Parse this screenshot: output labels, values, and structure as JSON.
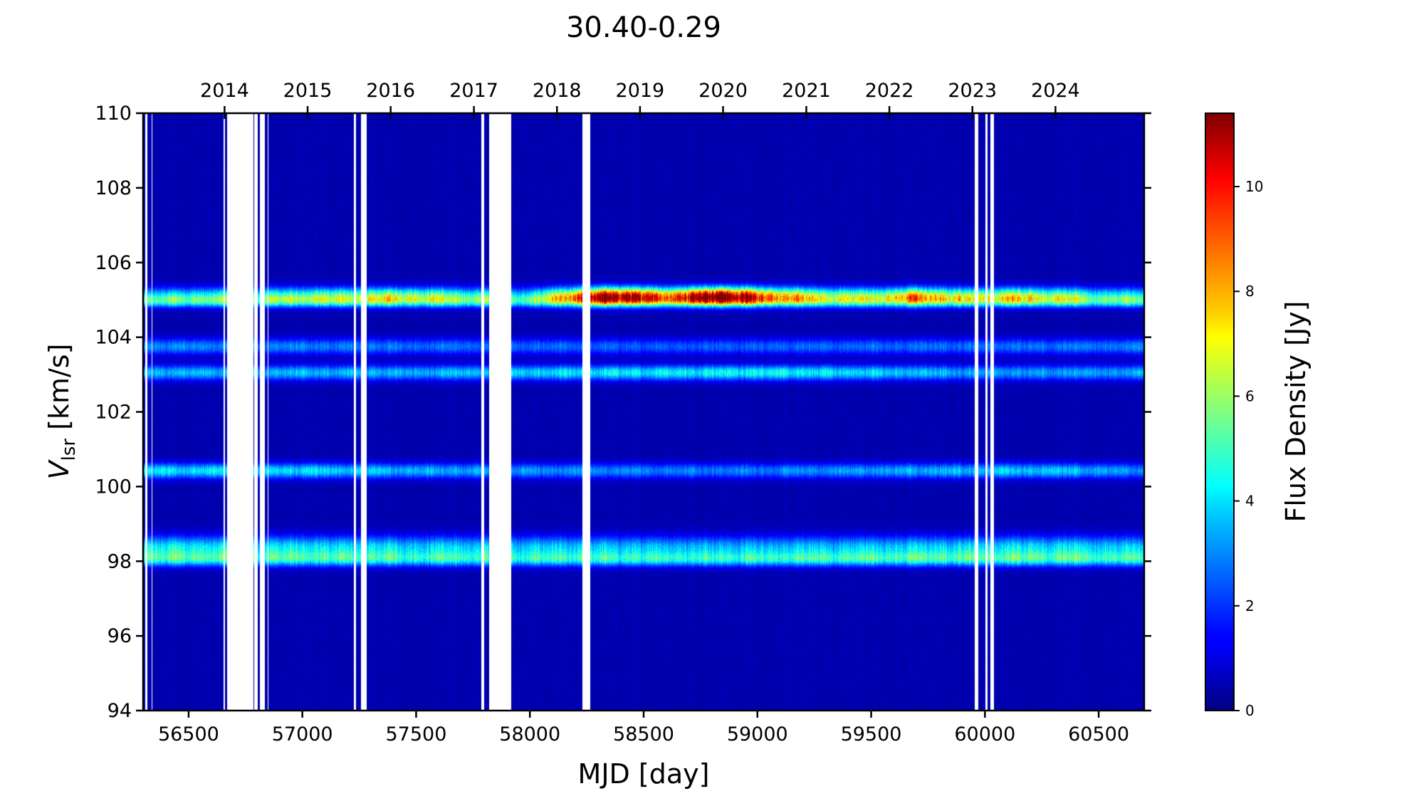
{
  "chart_data": {
    "type": "heatmap",
    "title": "30.40-0.29",
    "xlabel": "MJD [day]",
    "ylabel_main": "V",
    "ylabel_sub": "lsr",
    "ylabel_unit": " [km/s]",
    "colorbar_label": "Flux Density [Jy]",
    "colormap": "jet",
    "xlim": [
      56300,
      60700
    ],
    "ylim": [
      94,
      110
    ],
    "clim": [
      0,
      11.4
    ],
    "x_ticks": [
      56500,
      57000,
      57500,
      58000,
      58500,
      59000,
      59500,
      60000,
      60500
    ],
    "y_ticks": [
      94,
      96,
      98,
      100,
      102,
      104,
      106,
      108,
      110
    ],
    "top_axis": {
      "labels": [
        "2014",
        "2015",
        "2016",
        "2017",
        "2018",
        "2019",
        "2020",
        "2021",
        "2022",
        "2023",
        "2024"
      ],
      "mjd_positions": [
        56658,
        57023,
        57388,
        57754,
        58119,
        58484,
        58849,
        59215,
        59580,
        59945,
        60310
      ]
    },
    "colorbar_ticks": [
      0,
      2,
      4,
      6,
      8,
      10
    ],
    "data_gaps_mjd": [
      [
        56310,
        56318
      ],
      [
        56336,
        56341
      ],
      [
        56654,
        56660
      ],
      [
        56670,
        56785
      ],
      [
        56788,
        56803
      ],
      [
        56813,
        56836
      ],
      [
        56848,
        56852
      ],
      [
        57227,
        57237
      ],
      [
        57257,
        57282
      ],
      [
        57788,
        57798
      ],
      [
        57822,
        57917
      ],
      [
        58230,
        58265
      ],
      [
        59955,
        59970
      ],
      [
        60002,
        60012
      ],
      [
        60023,
        60040
      ]
    ],
    "emission_features": [
      {
        "velocity": 105.1,
        "width": 0.16,
        "peak_flux": 7.5,
        "profile": [
          [
            56300,
            3.0
          ],
          [
            56600,
            3.6
          ],
          [
            57000,
            4.2
          ],
          [
            57450,
            5.2
          ],
          [
            57700,
            4.0
          ],
          [
            58000,
            3.0
          ],
          [
            58150,
            6.3
          ],
          [
            58370,
            10.2
          ],
          [
            58600,
            7.5
          ],
          [
            58850,
            11.2
          ],
          [
            59000,
            8.0
          ],
          [
            59250,
            5.2
          ],
          [
            59500,
            4.6
          ],
          [
            59700,
            6.8
          ],
          [
            59900,
            5.0
          ],
          [
            60150,
            5.6
          ],
          [
            60300,
            5.0
          ],
          [
            60500,
            3.5
          ],
          [
            60700,
            3.2
          ]
        ]
      },
      {
        "velocity": 104.95,
        "width": 0.1,
        "peak_flux": 3.5,
        "profile": [
          [
            56300,
            2.5
          ],
          [
            60700,
            2.5
          ]
        ]
      },
      {
        "velocity": 103.75,
        "width": 0.15,
        "peak_flux": 2.2,
        "profile": [
          [
            56300,
            2.4
          ],
          [
            58500,
            1.8
          ],
          [
            60700,
            2.2
          ]
        ]
      },
      {
        "velocity": 103.05,
        "width": 0.14,
        "peak_flux": 3.2,
        "profile": [
          [
            56300,
            2.9
          ],
          [
            57500,
            2.8
          ],
          [
            58600,
            3.6
          ],
          [
            59000,
            3.8
          ],
          [
            59500,
            3.2
          ],
          [
            60000,
            2.6
          ],
          [
            60700,
            2.6
          ]
        ]
      },
      {
        "velocity": 100.42,
        "width": 0.14,
        "peak_flux": 3.2,
        "profile": [
          [
            56300,
            3.4
          ],
          [
            57000,
            3.3
          ],
          [
            58000,
            2.4
          ],
          [
            59000,
            2.2
          ],
          [
            60250,
            3.2
          ],
          [
            60700,
            2.3
          ]
        ]
      },
      {
        "velocity": 98.35,
        "width": 0.22,
        "peak_flux": 3.2,
        "profile": [
          [
            56300,
            3.6
          ],
          [
            57200,
            3.3
          ],
          [
            58000,
            3.0
          ],
          [
            59000,
            2.8
          ],
          [
            60250,
            3.4
          ],
          [
            60700,
            2.9
          ]
        ]
      },
      {
        "velocity": 98.05,
        "width": 0.13,
        "peak_flux": 3.0,
        "profile": [
          [
            56300,
            3.1
          ],
          [
            58000,
            2.9
          ],
          [
            60250,
            3.3
          ],
          [
            60700,
            2.9
          ]
        ]
      }
    ],
    "background_flux": 0.3,
    "grid": false
  }
}
